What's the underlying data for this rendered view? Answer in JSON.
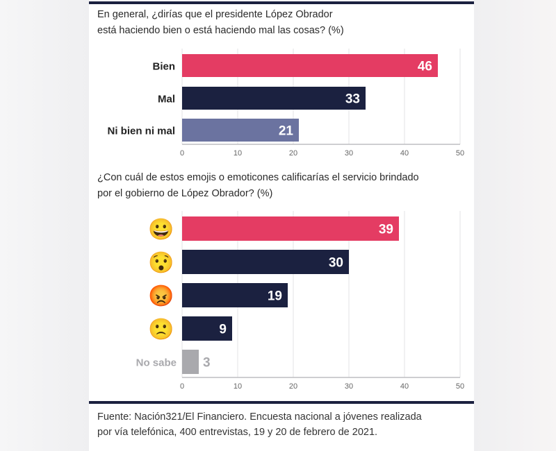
{
  "colors": {
    "accent": "#e43c63",
    "dark": "#1b2140",
    "muted": "#6b73a0",
    "gray": "#a9a9ad",
    "grid": "#e3e3e6",
    "axis": "#bdbdc2"
  },
  "header": {
    "question1_line1": "En general, ¿dirías que el presidente López Obrador",
    "question1_line2": "está haciendo bien o está haciendo mal las cosas? (%)",
    "question2_line1": "¿Con cuál de estos emojis o emoticones calificarías el servicio brindado",
    "question2_line2": "por el gobierno de López Obrador? (%)"
  },
  "footer": {
    "source_line1": "Fuente: Nación321/El Financiero. Encuesta nacional a jóvenes realizada",
    "source_line2": "por vía telefónica, 400 entrevistas, 19 y 20 de febrero de 2021."
  },
  "chart_data": [
    {
      "type": "bar",
      "orientation": "horizontal",
      "title": "En general, ¿dirías que el presidente López Obrador está haciendo bien o está haciendo mal las cosas? (%)",
      "categories": [
        "Bien",
        "Mal",
        "Ni bien ni mal"
      ],
      "values": [
        46,
        33,
        21
      ],
      "bar_colors": [
        "accent",
        "dark",
        "muted"
      ],
      "xlim": [
        0,
        50
      ],
      "xticks": [
        "0",
        "10",
        "20",
        "30",
        "40",
        "50"
      ],
      "grid": true,
      "xlabel": "",
      "ylabel": ""
    },
    {
      "type": "bar",
      "orientation": "horizontal",
      "title": "¿Con cuál de estos emojis o emoticones calificarías el servicio brindado por el gobierno de López Obrador? (%)",
      "categories": [
        "grinning-face-emoji",
        "hushed-face-emoji",
        "angry-face-emoji",
        "slightly-frowning-face-emoji",
        "No sabe"
      ],
      "category_glyphs": [
        "😀",
        "😯",
        "😡",
        "🙁",
        ""
      ],
      "category_labels": [
        "",
        "",
        "",
        "",
        "No sabe"
      ],
      "values": [
        39,
        30,
        19,
        9,
        3
      ],
      "bar_colors": [
        "accent",
        "dark",
        "dark",
        "dark",
        "gray"
      ],
      "xlim": [
        0,
        50
      ],
      "xticks": [
        "0",
        "10",
        "20",
        "30",
        "40",
        "50"
      ],
      "grid": true,
      "xlabel": "",
      "ylabel": ""
    }
  ]
}
